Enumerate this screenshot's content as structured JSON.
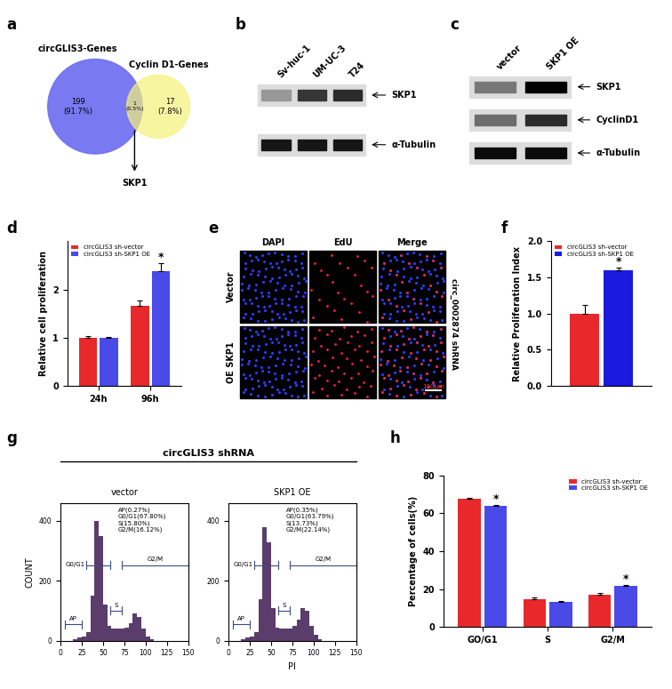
{
  "panel_labels": [
    "a",
    "b",
    "c",
    "d",
    "e",
    "f",
    "g",
    "h"
  ],
  "venn": {
    "sets": [
      {
        "name": "circGLIS3-Genes",
        "count_label": "199",
        "percent_label": "(91.7%)",
        "color": "#7272f2"
      },
      {
        "name": "Cyclin D1-Genes",
        "count_label": "17",
        "percent_label": "(7.8%)",
        "color": "#f6f27a"
      }
    ],
    "overlap": {
      "count_label": "1",
      "percent_label": "(0.5%)"
    },
    "annotation": "SKP1"
  },
  "blot_b": {
    "lanes": [
      "Sv-huc-1",
      "UM-UC-3",
      "T24"
    ],
    "rows": [
      {
        "name": "SKP1",
        "intensity": [
          0.3,
          0.75,
          0.8
        ]
      },
      {
        "name": "α-Tubulin",
        "intensity": [
          0.9,
          0.9,
          0.9
        ]
      }
    ]
  },
  "blot_c": {
    "lanes": [
      "vector",
      "SKP1 OE"
    ],
    "rows": [
      {
        "name": "SKP1",
        "intensity": [
          0.45,
          1.0
        ]
      },
      {
        "name": "CyclinD1",
        "intensity": [
          0.5,
          0.8
        ]
      },
      {
        "name": "α-Tubulin",
        "intensity": [
          0.95,
          0.95
        ]
      }
    ]
  },
  "edu": {
    "columns": [
      "DAPI",
      "EdU",
      "Merge"
    ],
    "rows": [
      "Vector",
      "OE SKP1"
    ],
    "side_label": "circ_0002874 shRNA",
    "scale_label": "100μm"
  },
  "flow_title": "circGLIS3 shRNA",
  "chart_data": [
    {
      "type": "bar",
      "ylabel": "Relative cell proliferation",
      "categories": [
        "24h",
        "96h"
      ],
      "series": [
        {
          "name": "circGLIS3 sh-vector",
          "color": "#e8282b",
          "values": [
            1.0,
            1.65
          ],
          "errors": [
            0.03,
            0.12
          ],
          "annotations": [
            null,
            null
          ]
        },
        {
          "name": "circGLIS3 sh-SKP1 OE",
          "color": "#4a4ae8",
          "values": [
            1.0,
            2.38
          ],
          "errors": [
            0.02,
            0.17
          ],
          "annotations": [
            null,
            "*"
          ]
        }
      ],
      "ylim": [
        0,
        3
      ],
      "yticks": [
        0,
        1,
        2
      ],
      "legend": "upper left"
    },
    {
      "type": "bar",
      "ylabel": "Relative Proliferation Index",
      "categories": [
        null
      ],
      "series": [
        {
          "name": "circGLIS3 sh-vector",
          "color": "#e8282b",
          "values": [
            1.0
          ],
          "errors": [
            0.12
          ],
          "annotations": [
            null
          ]
        },
        {
          "name": "circGLIS3 sh-SKP1 OE",
          "color": "#1a1ae0",
          "values": [
            1.6
          ],
          "errors": [
            0.04
          ],
          "annotations": [
            "*"
          ]
        }
      ],
      "ylim": [
        0,
        2.0
      ],
      "yticks": [
        {
          "value": 0,
          "label": "0.0"
        },
        {
          "value": 0.5,
          "label": "0.5"
        },
        {
          "value": 1.0,
          "label": "1.0"
        },
        {
          "value": 1.5,
          "label": "1.5"
        },
        {
          "value": 2.0,
          "label": "2.0"
        }
      ],
      "legend": "upper left",
      "tick_labels": "y"
    },
    {
      "type": "histogram",
      "title": "vector",
      "ylabel": "COUNT",
      "color": "#5b3d6b",
      "bins": [
        0,
        5,
        10,
        15,
        20,
        25,
        30,
        35,
        40,
        45,
        50,
        55,
        60,
        65,
        70,
        75,
        80,
        85,
        90,
        95,
        100,
        105,
        110,
        115,
        120,
        125,
        130,
        135,
        140,
        145,
        150
      ],
      "counts": [
        0,
        0,
        0,
        5,
        10,
        15,
        30,
        150,
        400,
        350,
        120,
        50,
        40,
        40,
        40,
        45,
        60,
        90,
        80,
        40,
        15,
        5,
        0,
        0,
        0,
        0,
        0,
        0,
        0,
        0
      ],
      "xlim": [
        0,
        150
      ],
      "xticks": [
        0,
        25,
        50,
        75,
        100,
        125,
        150
      ],
      "ylim": [
        0,
        460
      ],
      "yticks": [
        0,
        200,
        400
      ],
      "gates": [
        {
          "label": "AP",
          "range": [
            5,
            25
          ]
        },
        {
          "label": "G0/G1",
          "range": [
            30,
            58
          ]
        },
        {
          "label": "S",
          "range": [
            58,
            72
          ]
        },
        {
          "label": "G2/M",
          "range": [
            72,
            150
          ]
        }
      ],
      "stats": [
        "AP(0.27%)",
        "G0/G1(67.80%)",
        "S(15.80%)",
        "G2/M(16.12%)"
      ]
    },
    {
      "type": "histogram",
      "title": "SKP1 OE",
      "xlabel": "PI",
      "color": "#5b3d6b",
      "bins": [
        0,
        5,
        10,
        15,
        20,
        25,
        30,
        35,
        40,
        45,
        50,
        55,
        60,
        65,
        70,
        75,
        80,
        85,
        90,
        95,
        100,
        105,
        110,
        115,
        120,
        125,
        130,
        135,
        140,
        145,
        150
      ],
      "counts": [
        0,
        0,
        0,
        5,
        10,
        15,
        30,
        140,
        380,
        330,
        110,
        45,
        40,
        40,
        40,
        50,
        70,
        110,
        100,
        50,
        20,
        5,
        0,
        0,
        0,
        0,
        0,
        0,
        0,
        0
      ],
      "xlim": [
        0,
        150
      ],
      "xticks": [
        0,
        25,
        50,
        75,
        100,
        125,
        150
      ],
      "ylim": [
        0,
        460
      ],
      "yticks": [
        0,
        200,
        400
      ],
      "gates": [
        {
          "label": "AP",
          "range": [
            5,
            25
          ]
        },
        {
          "label": "G0/G1",
          "range": [
            30,
            58
          ]
        },
        {
          "label": "S",
          "range": [
            58,
            72
          ]
        },
        {
          "label": "G2/M",
          "range": [
            72,
            150
          ]
        }
      ],
      "stats": [
        "AP(0.35%)",
        "G0/G1(63.79%)",
        "S(13.73%)",
        "G2/M(22.14%)"
      ]
    },
    {
      "type": "bar",
      "ylabel": "Percentage of cells(%)",
      "categories": [
        "GO/G1",
        "S",
        "G2/M"
      ],
      "series": [
        {
          "name": "circGLIS3 sh-vector",
          "color": "#e8282b",
          "values": [
            67.8,
            14.5,
            17.0
          ],
          "errors": [
            0.3,
            1.0,
            0.8
          ],
          "annotations": [
            null,
            null,
            null
          ]
        },
        {
          "name": "circGLIS3 sh-SKP1 OE",
          "color": "#4a4ae8",
          "values": [
            64.0,
            13.2,
            21.5
          ],
          "errors": [
            0.3,
            0.3,
            0.5
          ],
          "annotations": [
            "*",
            null,
            "*"
          ]
        }
      ],
      "ylim": [
        0,
        80
      ],
      "yticks": [
        0,
        20,
        40,
        60,
        80
      ],
      "legend": "upper right"
    }
  ]
}
